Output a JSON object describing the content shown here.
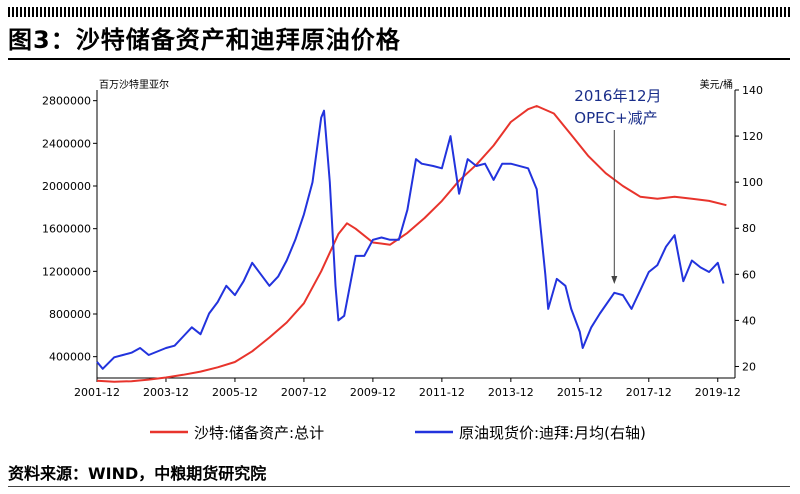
{
  "figure": {
    "title": "图3：沙特储备资产和迪拜原油价格",
    "source": "资料来源：WIND，中粮期货研究院"
  },
  "chart_data": {
    "type": "line",
    "left_axis": {
      "unit": "百万沙特里亚尔",
      "ticks": [
        "400000",
        "800000",
        "1200000",
        "1600000",
        "2000000",
        "2400000",
        "2800000"
      ],
      "ylim": [
        200000,
        2900000
      ]
    },
    "right_axis": {
      "unit": "美元/桶",
      "ticks": [
        "20",
        "40",
        "60",
        "80",
        "100",
        "120",
        "140"
      ],
      "ylim": [
        15,
        140
      ]
    },
    "x_tick_labels": [
      "2001-12",
      "2003-12",
      "2005-12",
      "2007-12",
      "2009-12",
      "2011-12",
      "2013-12",
      "2015-12",
      "2017-12",
      "2019-12"
    ],
    "x_range": [
      "2001-12",
      "2020-06"
    ],
    "annotation": {
      "line1": "2016年12月",
      "line2": "OPEC+减产",
      "date": "2016-12"
    },
    "legend_position": "bottom",
    "series": [
      {
        "name": "沙特:储备资产:总计",
        "axis": "left",
        "color": "#e8342c",
        "points": [
          [
            "2001-12",
            175000
          ],
          [
            "2002-06",
            165000
          ],
          [
            "2002-12",
            170000
          ],
          [
            "2003-06",
            185000
          ],
          [
            "2003-12",
            205000
          ],
          [
            "2004-06",
            230000
          ],
          [
            "2004-12",
            260000
          ],
          [
            "2005-06",
            300000
          ],
          [
            "2005-12",
            350000
          ],
          [
            "2006-06",
            450000
          ],
          [
            "2006-12",
            580000
          ],
          [
            "2007-06",
            720000
          ],
          [
            "2007-12",
            900000
          ],
          [
            "2008-06",
            1200000
          ],
          [
            "2008-12",
            1550000
          ],
          [
            "2009-03",
            1650000
          ],
          [
            "2009-06",
            1600000
          ],
          [
            "2009-12",
            1470000
          ],
          [
            "2010-06",
            1450000
          ],
          [
            "2010-12",
            1560000
          ],
          [
            "2011-06",
            1700000
          ],
          [
            "2011-12",
            1860000
          ],
          [
            "2012-06",
            2050000
          ],
          [
            "2012-12",
            2200000
          ],
          [
            "2013-06",
            2380000
          ],
          [
            "2013-12",
            2600000
          ],
          [
            "2014-06",
            2720000
          ],
          [
            "2014-09",
            2750000
          ],
          [
            "2015-03",
            2680000
          ],
          [
            "2015-09",
            2480000
          ],
          [
            "2016-03",
            2280000
          ],
          [
            "2016-09",
            2120000
          ],
          [
            "2017-03",
            2000000
          ],
          [
            "2017-09",
            1900000
          ],
          [
            "2018-03",
            1880000
          ],
          [
            "2018-09",
            1900000
          ],
          [
            "2019-03",
            1880000
          ],
          [
            "2019-09",
            1860000
          ],
          [
            "2020-03",
            1820000
          ]
        ]
      },
      {
        "name": "原油现货价:迪拜:月均(右轴)",
        "axis": "right",
        "color": "#2233dd",
        "points": [
          [
            "2001-12",
            22
          ],
          [
            "2002-02",
            19
          ],
          [
            "2002-06",
            24
          ],
          [
            "2002-09",
            25
          ],
          [
            "2002-12",
            26
          ],
          [
            "2003-03",
            28
          ],
          [
            "2003-06",
            25
          ],
          [
            "2003-12",
            28
          ],
          [
            "2004-03",
            29
          ],
          [
            "2004-06",
            33
          ],
          [
            "2004-09",
            37
          ],
          [
            "2004-12",
            34
          ],
          [
            "2005-03",
            43
          ],
          [
            "2005-06",
            48
          ],
          [
            "2005-09",
            55
          ],
          [
            "2005-12",
            51
          ],
          [
            "2006-03",
            57
          ],
          [
            "2006-06",
            65
          ],
          [
            "2006-09",
            60
          ],
          [
            "2006-12",
            55
          ],
          [
            "2007-03",
            59
          ],
          [
            "2007-06",
            66
          ],
          [
            "2007-09",
            75
          ],
          [
            "2007-12",
            86
          ],
          [
            "2008-03",
            100
          ],
          [
            "2008-06",
            128
          ],
          [
            "2008-07",
            131
          ],
          [
            "2008-09",
            100
          ],
          [
            "2008-11",
            55
          ],
          [
            "2008-12",
            40
          ],
          [
            "2009-02",
            42
          ],
          [
            "2009-06",
            68
          ],
          [
            "2009-09",
            68
          ],
          [
            "2009-12",
            75
          ],
          [
            "2010-03",
            76
          ],
          [
            "2010-06",
            75
          ],
          [
            "2010-09",
            75
          ],
          [
            "2010-12",
            88
          ],
          [
            "2011-03",
            110
          ],
          [
            "2011-05",
            108
          ],
          [
            "2011-09",
            107
          ],
          [
            "2011-12",
            106
          ],
          [
            "2012-03",
            120
          ],
          [
            "2012-06",
            95
          ],
          [
            "2012-09",
            110
          ],
          [
            "2012-12",
            107
          ],
          [
            "2013-03",
            108
          ],
          [
            "2013-06",
            101
          ],
          [
            "2013-09",
            108
          ],
          [
            "2013-12",
            108
          ],
          [
            "2014-06",
            106
          ],
          [
            "2014-09",
            97
          ],
          [
            "2014-12",
            60
          ],
          [
            "2015-01",
            45
          ],
          [
            "2015-04",
            58
          ],
          [
            "2015-07",
            55
          ],
          [
            "2015-09",
            45
          ],
          [
            "2015-12",
            35
          ],
          [
            "2016-01",
            28
          ],
          [
            "2016-04",
            37
          ],
          [
            "2016-07",
            43
          ],
          [
            "2016-12",
            52
          ],
          [
            "2017-03",
            51
          ],
          [
            "2017-06",
            45
          ],
          [
            "2017-09",
            53
          ],
          [
            "2017-12",
            61
          ],
          [
            "2018-03",
            64
          ],
          [
            "2018-06",
            72
          ],
          [
            "2018-09",
            77
          ],
          [
            "2018-12",
            57
          ],
          [
            "2019-03",
            66
          ],
          [
            "2019-06",
            63
          ],
          [
            "2019-09",
            61
          ],
          [
            "2019-12",
            65
          ],
          [
            "2020-02",
            56
          ]
        ]
      }
    ]
  }
}
